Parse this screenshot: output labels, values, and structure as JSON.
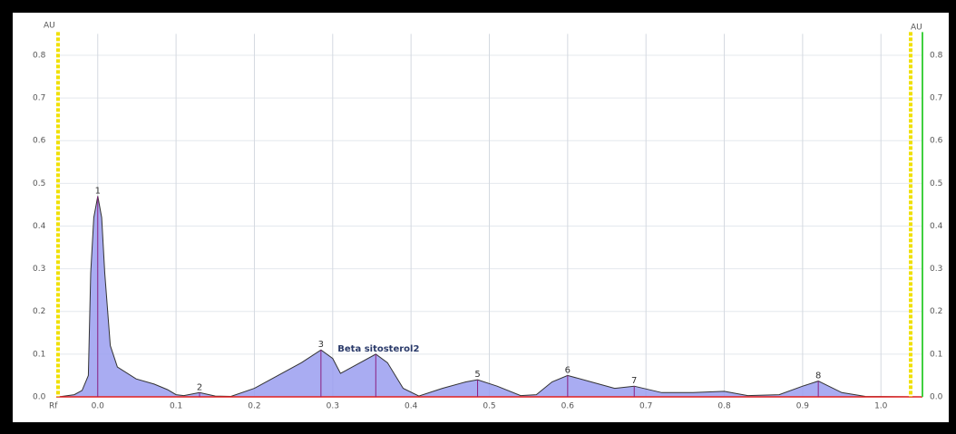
{
  "chart_data": {
    "type": "area",
    "y_label": "AU",
    "x_label": "Rf",
    "xlim": [
      -0.053,
      1.053
    ],
    "ylim": [
      0,
      0.85
    ],
    "xticks": [
      {
        "value": 0,
        "label": "0.0"
      },
      0.1,
      0.2,
      0.3,
      0.4,
      0.5,
      0.6,
      0.7,
      0.8,
      0.9,
      {
        "value": 1,
        "label": "1.0"
      }
    ],
    "yticks": [
      {
        "value": 0,
        "label": "0.0"
      },
      0.1,
      0.2,
      0.3,
      0.4,
      0.5,
      0.6,
      0.7,
      0.8
    ],
    "grid": true,
    "color": "#9a9ef0",
    "x": [
      -0.05,
      -0.03,
      -0.02,
      -0.012,
      -0.009,
      -0.005,
      0.0,
      0.005,
      0.009,
      0.016,
      0.025,
      0.049,
      0.072,
      0.089,
      0.1,
      0.11,
      0.13,
      0.15,
      0.17,
      0.2,
      0.23,
      0.26,
      0.285,
      0.3,
      0.31,
      0.33,
      0.355,
      0.37,
      0.39,
      0.41,
      0.44,
      0.47,
      0.485,
      0.51,
      0.54,
      0.56,
      0.58,
      0.6,
      0.63,
      0.66,
      0.685,
      0.72,
      0.76,
      0.8,
      0.83,
      0.87,
      0.9,
      0.92,
      0.95,
      0.98,
      1.05
    ],
    "values": [
      0,
      0.005,
      0.015,
      0.05,
      0.29,
      0.42,
      0.47,
      0.42,
      0.29,
      0.12,
      0.07,
      0.042,
      0.03,
      0.017,
      0.005,
      0.003,
      0.01,
      0.002,
      0.001,
      0.02,
      0.05,
      0.08,
      0.11,
      0.09,
      0.055,
      0.075,
      0.1,
      0.08,
      0.02,
      0.002,
      0.02,
      0.035,
      0.04,
      0.025,
      0.003,
      0.005,
      0.035,
      0.05,
      0.035,
      0.02,
      0.025,
      0.01,
      0.01,
      0.013,
      0.003,
      0.005,
      0.025,
      0.037,
      0.01,
      0.001,
      0
    ],
    "peaks": [
      {
        "label": "1",
        "x": 0.0,
        "value": 0.47
      },
      {
        "label": "2",
        "x": 0.13,
        "value": 0.01
      },
      {
        "label": "3",
        "x": 0.285,
        "value": 0.11
      },
      {
        "label": "Beta sitosterol2",
        "x": 0.355,
        "value": 0.1
      },
      {
        "label": "5",
        "x": 0.485,
        "value": 0.04
      },
      {
        "label": "6",
        "x": 0.6,
        "value": 0.05
      },
      {
        "label": "7",
        "x": 0.685,
        "value": 0.025
      },
      {
        "label": "8",
        "x": 0.92,
        "value": 0.037
      }
    ]
  }
}
